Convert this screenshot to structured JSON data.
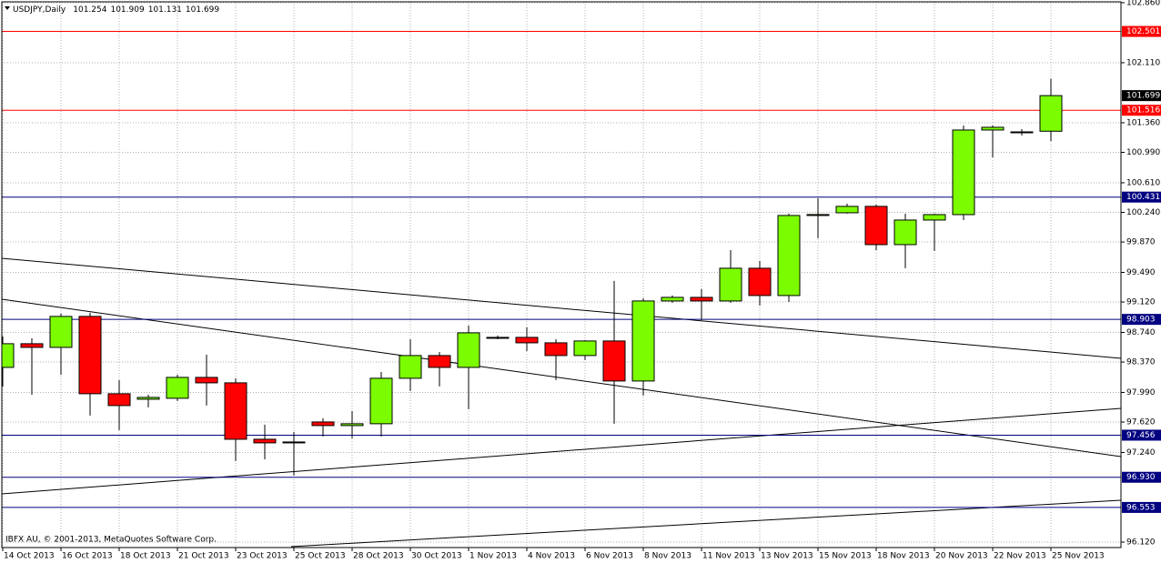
{
  "chart_data": {
    "type": "candlestick",
    "title": "USDJPY,Daily",
    "footer": "IBFX AU, © 2001-2013, MetaQuotes Software Corp.",
    "categories": [
      "14 Oct 2013",
      null,
      "16 Oct 2013",
      null,
      "18 Oct 2013",
      null,
      "21 Oct 2013",
      null,
      "23 Oct 2013",
      null,
      "25 Oct 2013",
      null,
      "28 Oct 2013",
      null,
      "30 Oct 2013",
      null,
      "1 Nov 2013",
      null,
      "4 Nov 2013",
      null,
      "6 Nov 2013",
      null,
      "8 Nov 2013",
      null,
      "11 Nov 2013",
      null,
      "13 Nov 2013",
      null,
      "15 Nov 2013",
      null,
      "18 Nov 2013",
      null,
      "20 Nov 2013",
      null,
      "22 Nov 2013",
      null,
      "25 Nov 2013"
    ],
    "open": [
      98.303,
      98.599,
      98.553,
      98.94,
      97.974,
      97.905,
      97.917,
      98.178,
      98.11,
      97.405,
      97.36,
      97.621,
      97.576,
      97.599,
      98.167,
      98.451,
      98.303,
      98.667,
      98.678,
      98.61,
      98.451,
      98.633,
      98.133,
      99.133,
      99.178,
      99.133,
      99.542,
      99.201,
      100.201,
      100.235,
      100.315,
      99.837,
      100.144,
      100.212,
      101.269,
      101.246,
      101.254
    ],
    "high": [
      98.69,
      98.667,
      98.974,
      98.985,
      98.144,
      97.962,
      98.212,
      98.462,
      98.167,
      97.587,
      97.496,
      97.667,
      97.758,
      98.246,
      98.655,
      98.496,
      98.826,
      98.701,
      98.803,
      98.655,
      98.644,
      99.383,
      99.167,
      99.201,
      99.281,
      99.769,
      99.633,
      100.224,
      100.417,
      100.349,
      100.337,
      100.224,
      100.224,
      101.326,
      101.326,
      101.28,
      101.909
    ],
    "low": [
      98.065,
      97.962,
      98.212,
      97.701,
      97.519,
      97.803,
      97.883,
      97.826,
      97.133,
      97.155,
      96.951,
      97.439,
      97.417,
      97.439,
      98.008,
      98.065,
      97.781,
      98.655,
      98.508,
      98.144,
      98.394,
      97.599,
      97.951,
      99.11,
      98.894,
      99.11,
      99.076,
      99.121,
      99.917,
      100.224,
      99.769,
      99.542,
      99.758,
      100.144,
      100.928,
      101.201,
      101.131
    ],
    "close": [
      98.599,
      98.553,
      98.94,
      97.974,
      97.826,
      97.928,
      98.178,
      98.11,
      97.405,
      97.36,
      97.371,
      97.576,
      97.599,
      98.167,
      98.451,
      98.303,
      98.735,
      98.678,
      98.61,
      98.451,
      98.633,
      98.133,
      99.133,
      99.178,
      99.133,
      99.542,
      99.201,
      100.201,
      100.213,
      100.315,
      99.837,
      100.144,
      100.212,
      101.269,
      101.303,
      101.235,
      101.699
    ],
    "up_color": "#7cfc00",
    "down_color": "#ff0000",
    "ylim": [
      96.052,
      102.871
    ],
    "yticks": [
      {
        "value": 102.86,
        "label": "102.860"
      },
      {
        "value": 102.11,
        "label": "102.110"
      },
      {
        "value": 101.36,
        "label": "101.360"
      },
      {
        "value": 100.99,
        "label": "100.990"
      },
      {
        "value": 100.61,
        "label": "100.610"
      },
      {
        "value": 100.24,
        "label": "100.240"
      },
      {
        "value": 99.87,
        "label": "99.870"
      },
      {
        "value": 99.49,
        "label": "99.490"
      },
      {
        "value": 99.12,
        "label": "99.120"
      },
      {
        "value": 98.74,
        "label": "98.740"
      },
      {
        "value": 98.37,
        "label": "98.370"
      },
      {
        "value": 97.99,
        "label": "97.990"
      },
      {
        "value": 97.62,
        "label": "97.620"
      },
      {
        "value": 97.24,
        "label": "97.240"
      },
      {
        "value": 96.12,
        "label": "96.120"
      }
    ],
    "grid": true,
    "levels": [
      {
        "value": 102.501,
        "color": "#ff0000"
      },
      {
        "value": 101.516,
        "color": "#ff0000"
      },
      {
        "value": 100.431,
        "color": "#000080"
      },
      {
        "value": 98.903,
        "color": "#000080"
      },
      {
        "value": 97.456,
        "color": "#000080"
      },
      {
        "value": 96.93,
        "label": "96.930",
        "color": "#000080"
      },
      {
        "value": 96.553,
        "color": "#000080"
      }
    ]
  }
}
